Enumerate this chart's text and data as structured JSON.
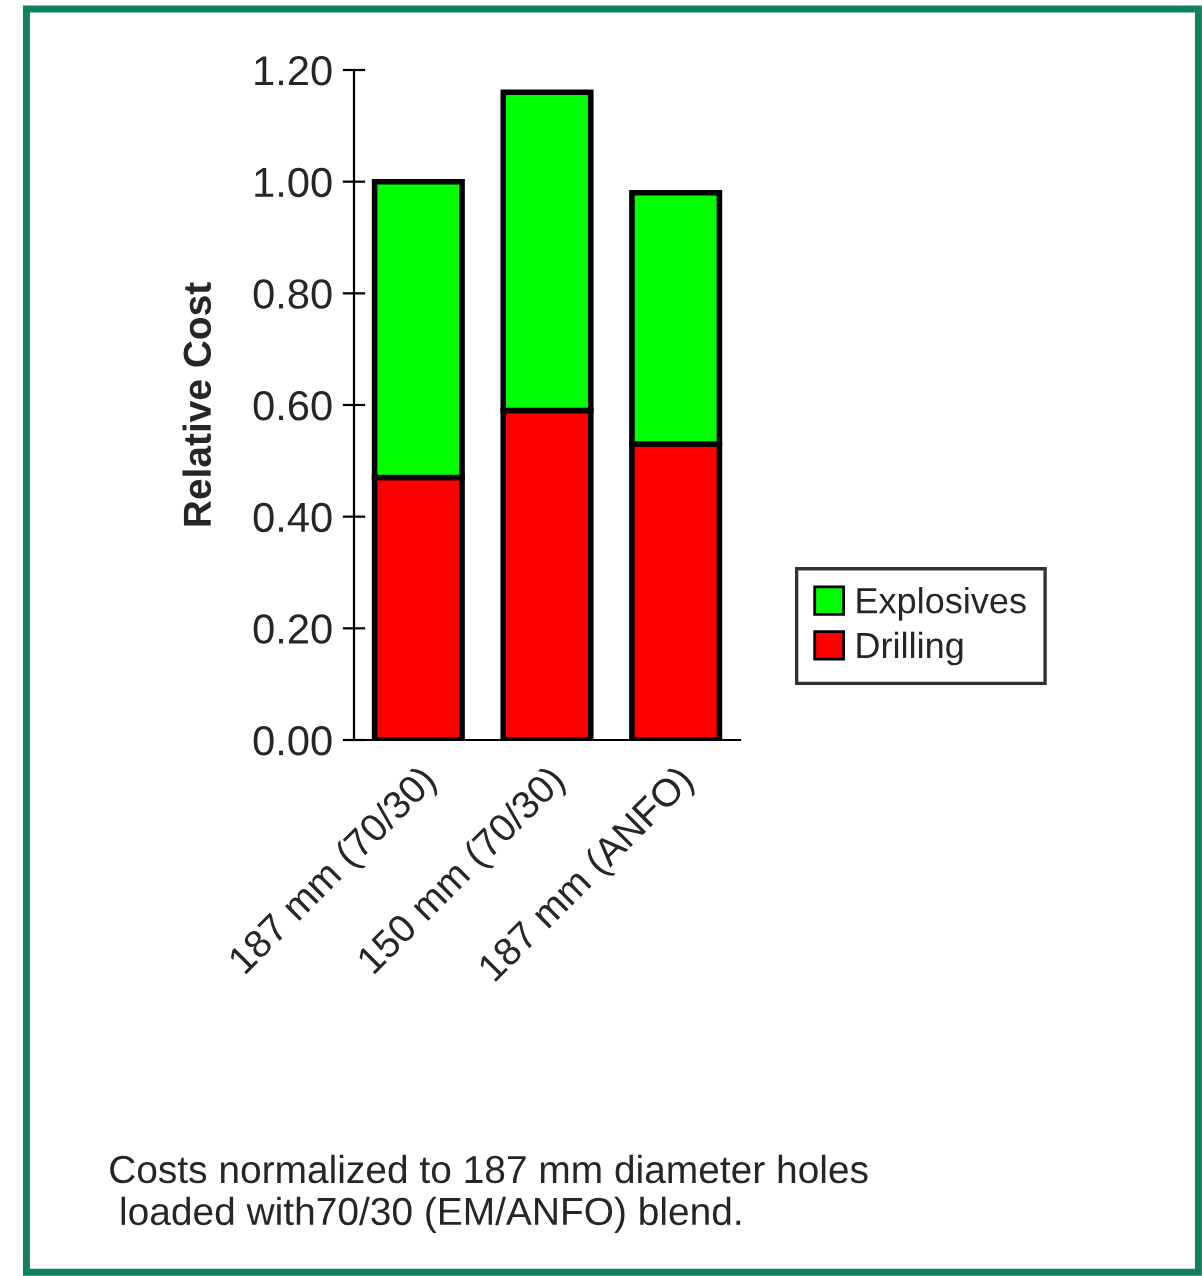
{
  "chart_data": {
    "type": "bar",
    "stacked": true,
    "ylabel": "Relative Cost",
    "categories": [
      "187 mm (70/30)",
      "150 mm (70/30)",
      "187 mm (ANFO)"
    ],
    "series": [
      {
        "name": "Drilling",
        "color": "#ff0000",
        "values": [
          0.47,
          0.59,
          0.53
        ]
      },
      {
        "name": "Explosives",
        "color": "#00ff00",
        "values": [
          0.53,
          0.57,
          0.45
        ]
      }
    ],
    "ylim": [
      0,
      1.2
    ],
    "yticks": [
      {
        "value": 0,
        "label": "0.00"
      },
      {
        "value": 0.2,
        "label": "0.20"
      },
      {
        "value": 0.4,
        "label": "0.40"
      },
      {
        "value": 0.6,
        "label": "0.60"
      },
      {
        "value": 0.8,
        "label": "0.80"
      },
      {
        "value": 1.0,
        "label": "1.00"
      },
      {
        "value": 1.2,
        "label": "1.20"
      }
    ],
    "grid": false,
    "legend": "right",
    "annotations": [
      "Costs normalized to 187 mm diameter holes\n loaded with70/30 (EM/ANFO) blend."
    ]
  }
}
